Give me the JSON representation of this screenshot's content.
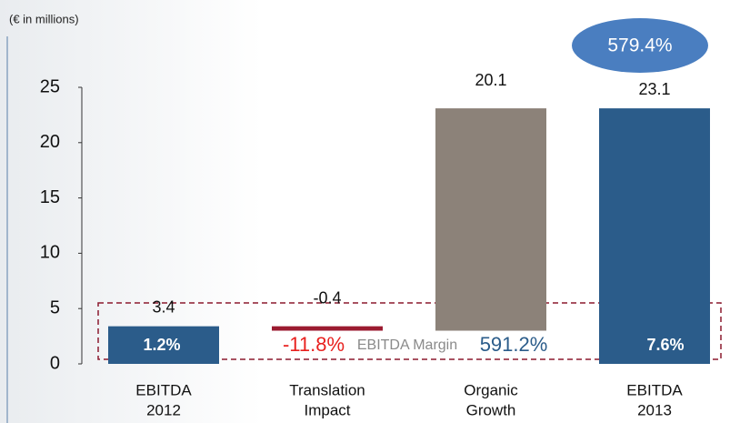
{
  "chart_data": {
    "type": "waterfall",
    "unit_label": "(€ in millions)",
    "categories": [
      [
        "EBITDA",
        "2012"
      ],
      [
        "Translation",
        "Impact"
      ],
      [
        "Organic",
        "Growth"
      ],
      [
        "EBITDA",
        "2013"
      ]
    ],
    "values": [
      3.4,
      -0.4,
      20.1,
      23.1
    ],
    "totals": [
      true,
      false,
      false,
      true
    ],
    "colors": [
      "#2b5c8a",
      "#9b1b30",
      "#8c8279",
      "#2b5c8a"
    ],
    "ylim": [
      0,
      25
    ],
    "yticks": [
      0,
      5,
      10,
      15,
      20,
      25
    ],
    "margin_title": "EBITDA Margin",
    "margin_labels": [
      "1.2%",
      "-11.8%",
      "591.2%",
      "7.6%"
    ],
    "margin_colors": [
      "#ffffff",
      "#e8201e",
      "#2b5c8a",
      "#ffffff"
    ],
    "highlight": "579.4%",
    "highlight_color": "#4a7ec0"
  }
}
